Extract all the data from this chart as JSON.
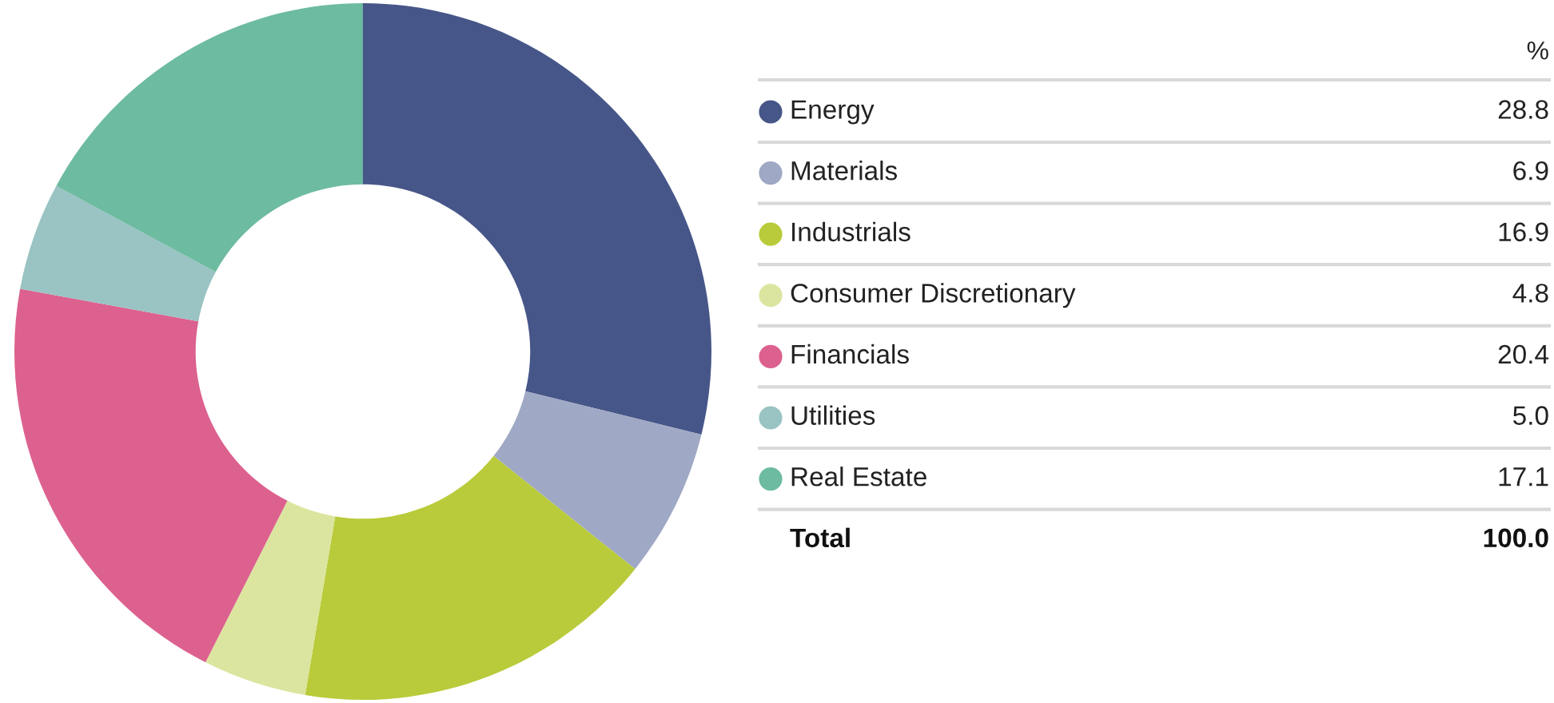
{
  "chart_data": {
    "type": "donut",
    "categories": [
      "Energy",
      "Materials",
      "Industrials",
      "Consumer Discretionary",
      "Financials",
      "Utilities",
      "Real Estate"
    ],
    "values": [
      28.8,
      6.9,
      16.9,
      4.8,
      20.4,
      5.0,
      17.1
    ],
    "colors": [
      "#465688",
      "#9fa8c4",
      "#b9cb3a",
      "#dce59f",
      "#dc618f",
      "#9ac3c3",
      "#6dbba1"
    ],
    "value_labels": [
      "28.8",
      "6.9",
      "16.9",
      "4.8",
      "20.4",
      "5.0",
      "17.1"
    ],
    "legend": "right",
    "annotations": [
      "%",
      "Total",
      "100.0"
    ]
  }
}
